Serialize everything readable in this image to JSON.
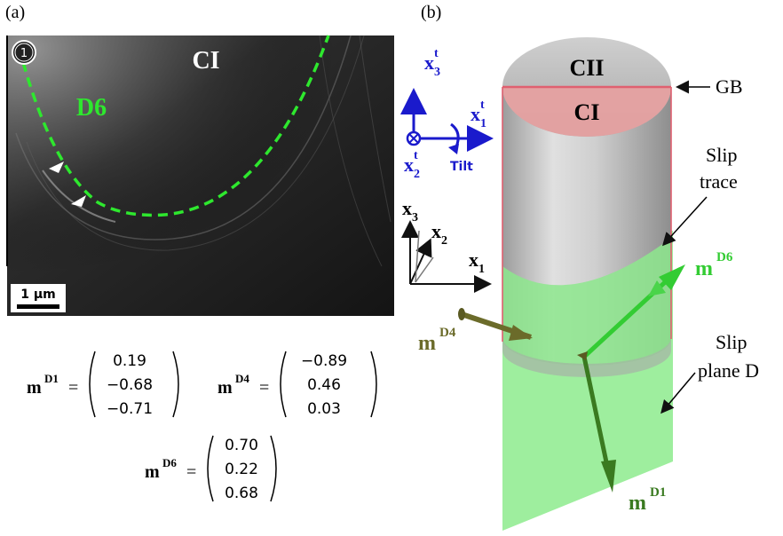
{
  "panel_a": {
    "label": "(a)",
    "marker": "1",
    "grain": "CI",
    "trace": "D6",
    "scale_bar": "1 µm",
    "colors": {
      "trace": "#2ee82e",
      "background": "#2a2a2a"
    }
  },
  "panel_b": {
    "label": "(b)",
    "grain_top": "CII",
    "grain_bottom": "CI",
    "gb_label": "GB",
    "slip_trace_line1": "Slip",
    "slip_trace_line2": "trace",
    "slip_plane_line1": "Slip",
    "slip_plane_line2": "plane D",
    "tilt_frame": {
      "x3": "x",
      "x3_sup": "t",
      "x3_sub": "3",
      "x1": "x",
      "x1_sup": "t",
      "x1_sub": "1",
      "x2": "x",
      "x2_sup": "t",
      "x2_sub": "2",
      "tilt": "Tilt"
    },
    "sample_frame": {
      "x3": "x",
      "x3_sub": "3",
      "x2": "x",
      "x2_sub": "2",
      "x1": "x",
      "x1_sub": "1"
    },
    "vectors": {
      "mD6": {
        "base": "m",
        "sup": "D6"
      },
      "mD4": {
        "base": "m",
        "sup": "D4"
      },
      "mD1": {
        "base": "m",
        "sup": "D1"
      }
    },
    "colors": {
      "frame_blue": "#1a1acc",
      "gb_pink": "#e06070",
      "plane_green": "#7ee87e",
      "arrow_bright": "#33cc33",
      "arrow_olive": "#6b6b2a",
      "arrow_dark": "#3a7a20"
    }
  },
  "equations": {
    "mD1": {
      "base": "m",
      "sup": "D1",
      "eq": "=",
      "values": [
        "0.19",
        "−0.68",
        "−0.71"
      ]
    },
    "mD4": {
      "base": "m",
      "sup": "D4",
      "eq": "=",
      "values": [
        "−0.89",
        "0.46",
        "0.03"
      ]
    },
    "mD6": {
      "base": "m",
      "sup": "D6",
      "eq": "=",
      "values": [
        "0.70",
        "0.22",
        "0.68"
      ]
    }
  }
}
